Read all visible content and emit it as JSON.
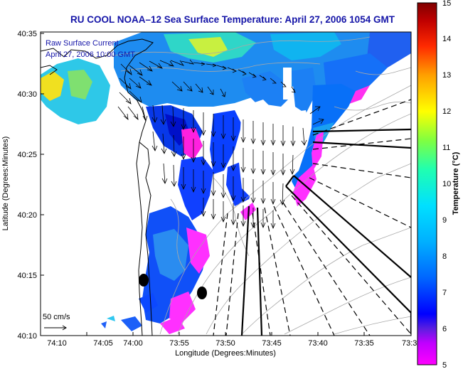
{
  "title": "RU COOL  NOAA–12  Sea Surface Temperature:  April 27, 2006 1054 GMT",
  "legend": {
    "line1": "Raw Surface Current",
    "line2": "April 27, 2006 10:00 GMT",
    "scale_label": "50 cm/s"
  },
  "axes": {
    "xlabel": "Longitude (Degrees:Minutes)",
    "ylabel": "Latitude (Degrees:Minutes)",
    "x_ticks": [
      "74:10",
      "74:05",
      "74:00",
      "73:55",
      "73:50",
      "73:45",
      "73:40",
      "73:35",
      "73:3"
    ],
    "y_ticks": [
      "40:35",
      "40:30",
      "40:25",
      "40:20",
      "40:15",
      "40:10"
    ]
  },
  "colorbar": {
    "title": "Temperature (°C)",
    "ticks": [
      "15",
      "14",
      "13",
      "12",
      "11",
      "10",
      "9",
      "8",
      "7",
      "6",
      "5"
    ],
    "min": 5,
    "max": 15,
    "colors": [
      "#ff00ff",
      "#8a2be2",
      "#0000ff",
      "#0066ff",
      "#00bfff",
      "#00ffff",
      "#00ff80",
      "#7fff00",
      "#ffff00",
      "#ffa500",
      "#ff3300",
      "#cc0000",
      "#800000"
    ]
  },
  "map_colors": {
    "land": "#ffffff",
    "coast": "#000000",
    "bathymetry": "#a8a8a8"
  }
}
